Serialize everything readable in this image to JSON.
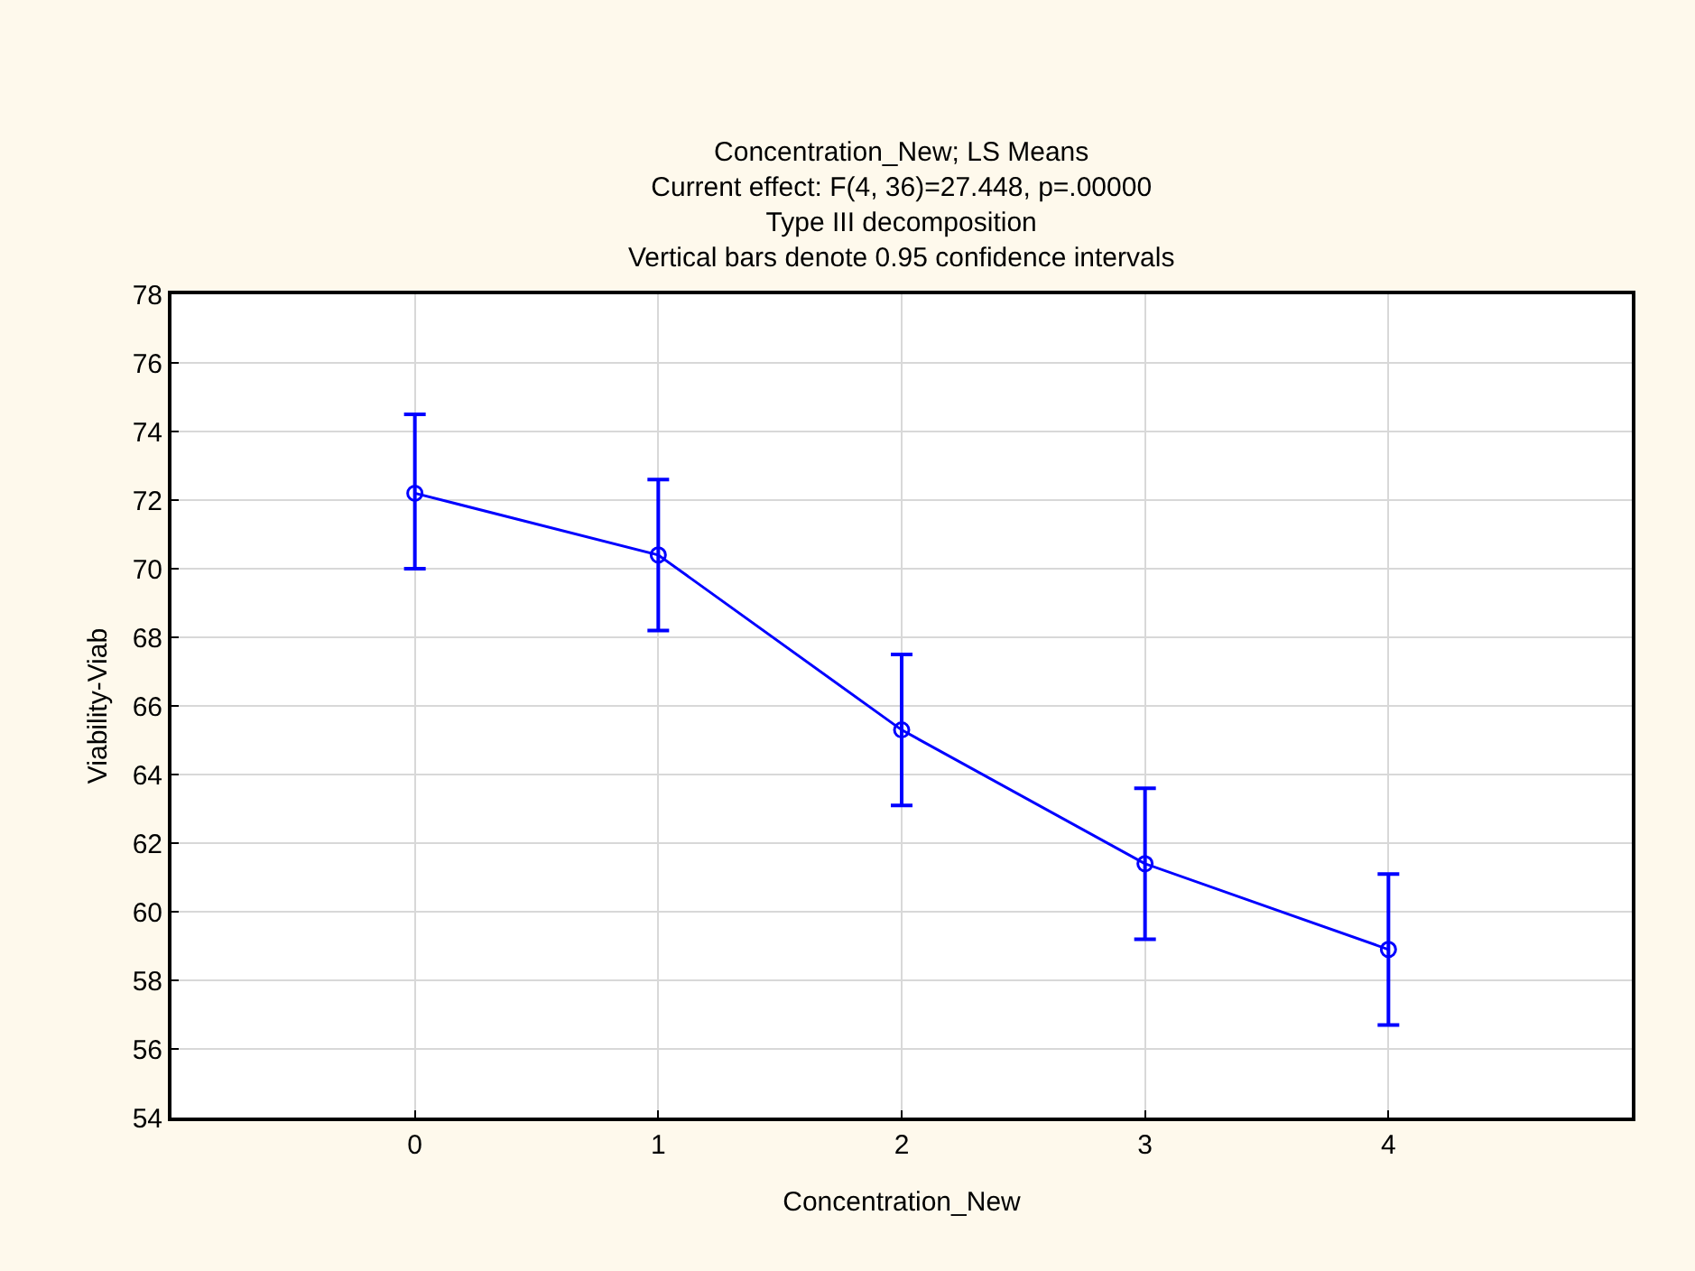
{
  "chart_data": {
    "type": "line",
    "title": "Concentration_New; LS Means",
    "subtitle": "Current effect: F(4, 36)=27.448, p=.00000\nType III decomposition\nVertical bars denote 0.95 confidence intervals",
    "xlabel": "Concentration_New",
    "ylabel": "Viability-Viab",
    "x": [
      0,
      1,
      2,
      3,
      4
    ],
    "values": [
      72.2,
      70.4,
      65.3,
      61.4,
      58.9
    ],
    "errors": [
      [
        70.0,
        74.5
      ],
      [
        68.2,
        72.6
      ],
      [
        63.1,
        67.5
      ],
      [
        59.2,
        63.6
      ],
      [
        56.7,
        61.1
      ]
    ],
    "color": "#0000ff",
    "marker": "circle",
    "line_style": "solid",
    "xlim": [
      -1,
      5
    ],
    "xticks": [
      0,
      1,
      2,
      3,
      4
    ],
    "ylim": [
      54,
      78
    ],
    "yticks": [
      54,
      56,
      58,
      60,
      62,
      64,
      66,
      68,
      70,
      72,
      74,
      76,
      78
    ],
    "grid": true,
    "legend": false
  }
}
